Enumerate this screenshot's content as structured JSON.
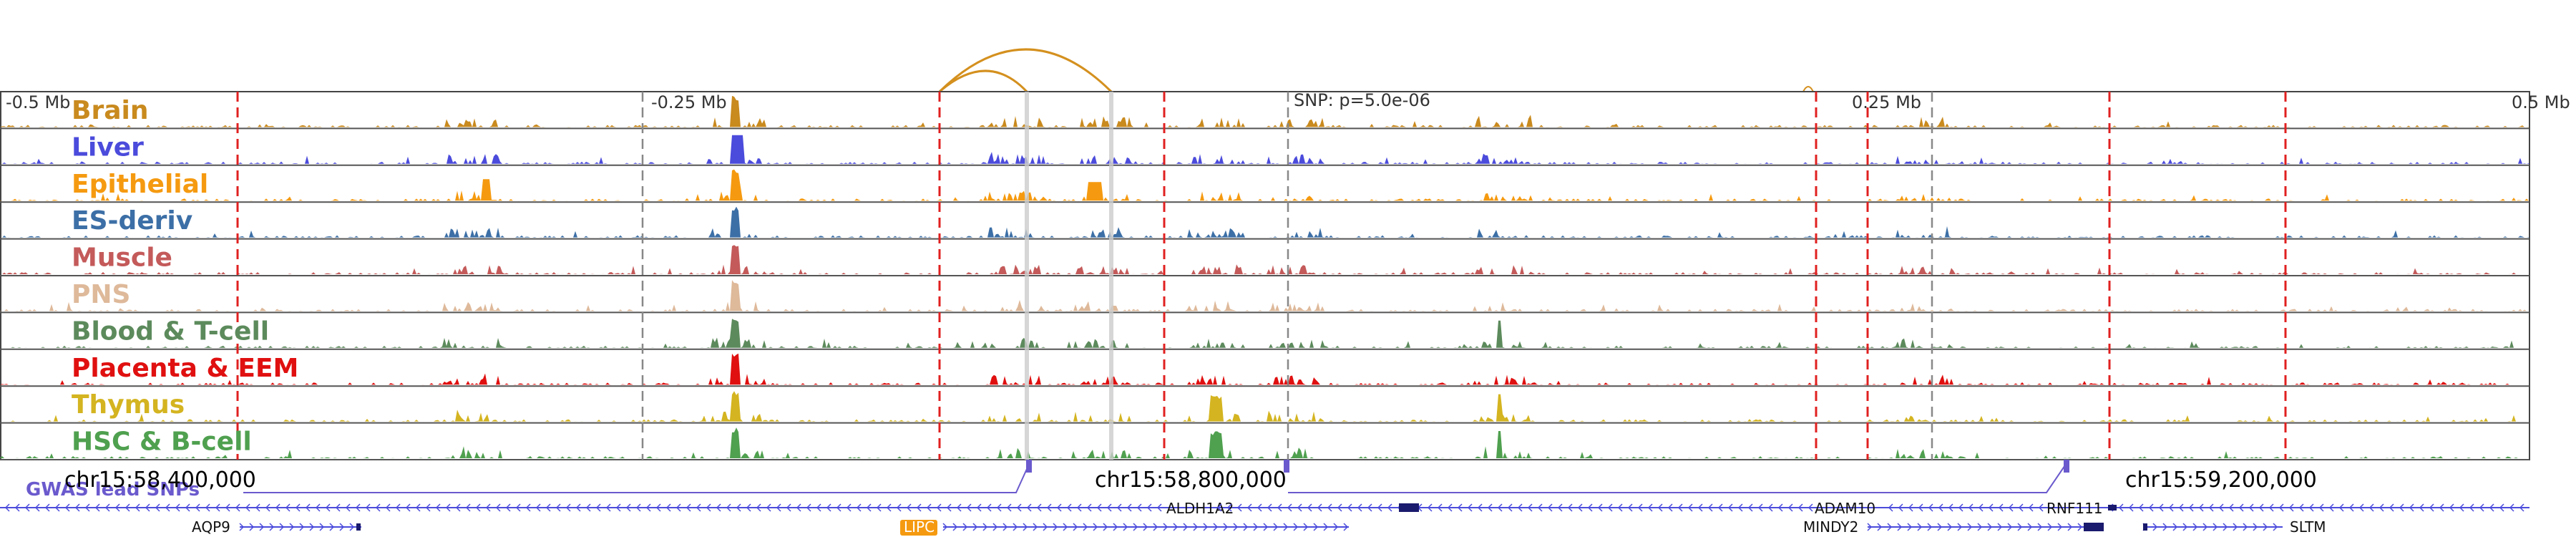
{
  "ruler": {
    "ticks": [
      "-0.5 Mb",
      "-0.25 Mb",
      "0.25 Mb",
      "0.5 Mb"
    ],
    "snp_label": "SNP: p=5.0e-06"
  },
  "tracks": [
    {
      "label": "Brain",
      "color": "#c98a1e"
    },
    {
      "label": "Liver",
      "color": "#4b4bdc"
    },
    {
      "label": "Epithelial",
      "color": "#f59a10"
    },
    {
      "label": "ES-deriv",
      "color": "#3c6fa6"
    },
    {
      "label": "Muscle",
      "color": "#c45a5a"
    },
    {
      "label": "PNS",
      "color": "#deb99a"
    },
    {
      "label": "Blood & T-cell",
      "color": "#5c8a5c"
    },
    {
      "label": "Placenta & EEM",
      "color": "#e01010"
    },
    {
      "label": "Thymus",
      "color": "#d4b420"
    },
    {
      "label": "HSC & B-cell",
      "color": "#4fa04f"
    }
  ],
  "gwas": {
    "label": "GWAS lead SNPs",
    "color": "#6a5acd"
  },
  "coordinates": [
    "chr15:58,400,000",
    "chr15:58,800,000",
    "chr15:59,200,000"
  ],
  "genes": {
    "row1": [
      "ALDH1A2",
      "ADAM10",
      "RNF111"
    ],
    "row2": [
      "AQP9",
      "LIPC",
      "MINDY2",
      "SLTM"
    ],
    "highlighted": "LIPC",
    "highlight_color": "#f59a10"
  },
  "loop_color": "#d4901e"
}
